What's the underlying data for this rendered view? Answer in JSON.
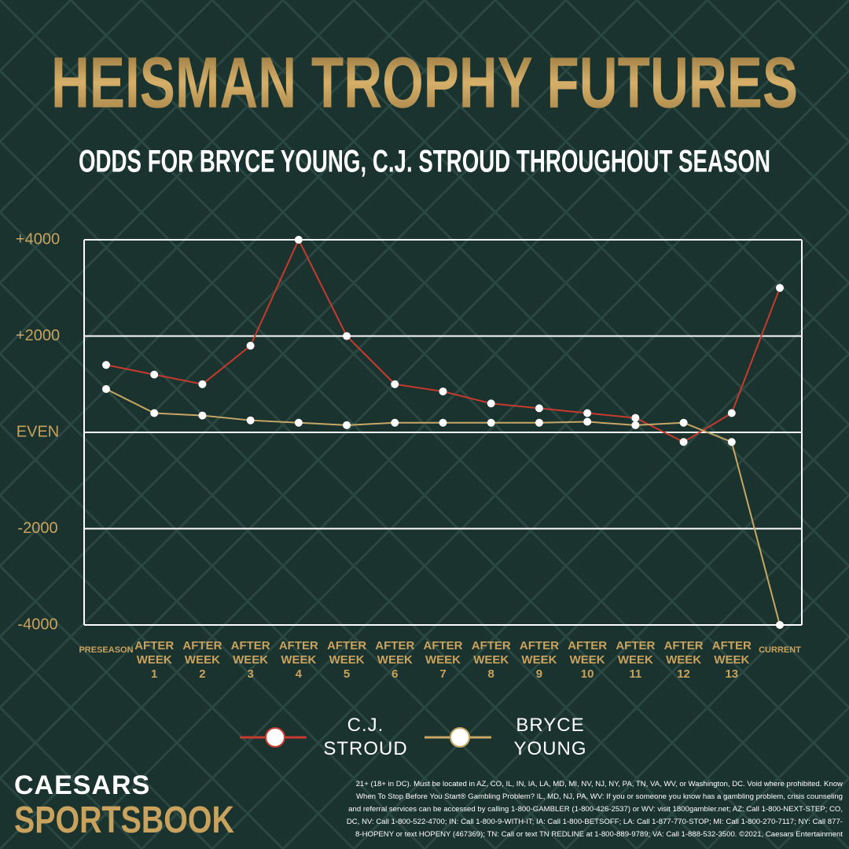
{
  "chart_data": {
    "type": "line",
    "title": "HEISMAN TROPHY FUTURES",
    "subtitle": "ODDS FOR BRYCE YOUNG, C.J. STROUD THROUGHOUT SEASON",
    "categories": [
      "PRESEASON",
      "AFTER WEEK 1",
      "AFTER WEEK 2",
      "AFTER WEEK 3",
      "AFTER WEEK 4",
      "AFTER WEEK 5",
      "AFTER WEEK 6",
      "AFTER WEEK 7",
      "AFTER WEEK 8",
      "AFTER WEEK 9",
      "AFTER WEEK 10",
      "AFTER WEEK 11",
      "AFTER WEEK 12",
      "AFTER WEEK 13",
      "CURRENT"
    ],
    "series": [
      {
        "name": "C.J. STROUD",
        "color": "#c8392e",
        "values": [
          1400,
          1200,
          1000,
          1800,
          4000,
          2000,
          1000,
          850,
          600,
          500,
          400,
          300,
          -200,
          400,
          3000
        ]
      },
      {
        "name": "BRYCE YOUNG",
        "color": "#c7a765",
        "values": [
          900,
          400,
          350,
          250,
          200,
          150,
          200,
          200,
          200,
          200,
          220,
          150,
          200,
          -200,
          -4000
        ]
      }
    ],
    "ylim": [
      -4000,
      4000
    ],
    "yticks": [
      -4000,
      -2000,
      {
        "value": 0,
        "label": "EVEN"
      },
      {
        "value": 2000,
        "label": "+2000"
      },
      {
        "value": 4000,
        "label": "+4000"
      }
    ],
    "grid": true,
    "legend": "bottom"
  },
  "logo": {
    "line1": "CAESARS",
    "line2": "SPORTSBOOK"
  },
  "disclaimer": "21+ (18+ in DC). Must be located in AZ, CO, IL, IN, IA, LA, MD, MI, NV, NJ, NY, PA, TN, VA, WV, or Washington, DC. Void where prohibited. Know When To Stop Before You Start® Gambling Problem? IL, MD, NJ, PA, WV: If you or someone you know has a gambling problem, crisis counseling and referral services can be accessed by calling 1-800-GAMBLER (1-800-426-2537) or WV: visit 1800gambler.net; AZ: Call 1-800-NEXT-STEP; CO, DC, NV: Call 1-800-522-4700; IN: Call 1-800-9-WITH-IT; IA: Call 1-800-BETSOFF; LA: Call 1-877-770-STOP; MI: Call 1-800-270-7117; NY: Call 877-8-HOPENY or text HOPENY (467369); TN: Call or text TN REDLINE at 1-800-889-9789; VA: Call 1-888-532-3500. ©2021, Caesars Entertainment"
}
